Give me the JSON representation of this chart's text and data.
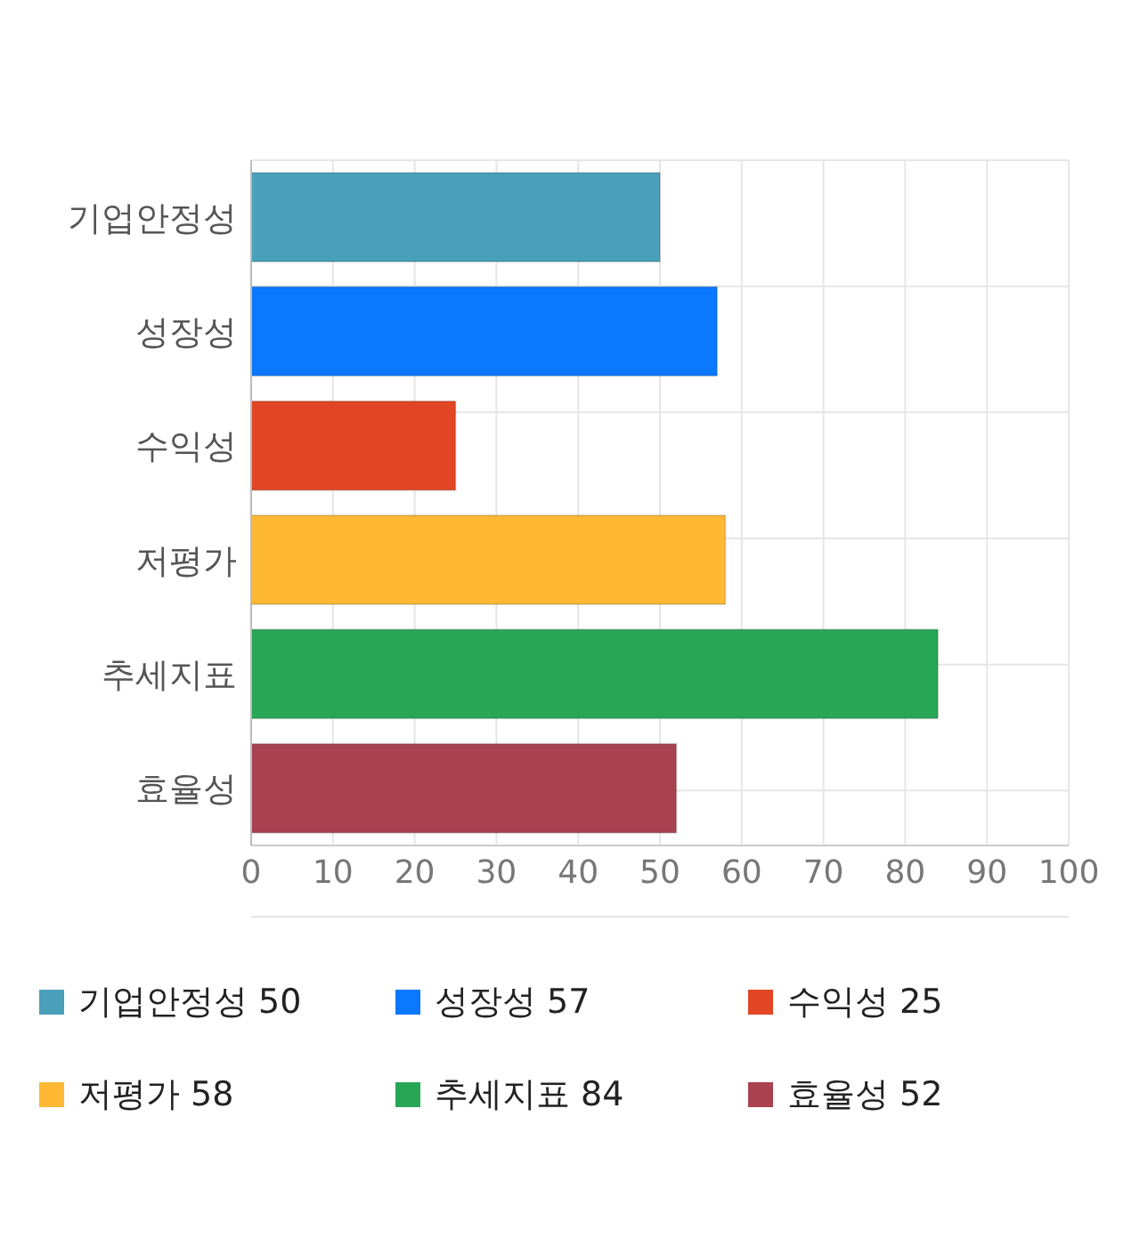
{
  "chart_data": {
    "type": "bar",
    "orientation": "horizontal",
    "stacked": true,
    "categories": [
      "기업안정성",
      "성장성",
      "수익성",
      "저평가",
      "추세지표",
      "효율성"
    ],
    "series": [
      {
        "name": "기업안정성 50",
        "color": "#4aa0bb",
        "values": [
          50,
          null,
          null,
          null,
          null,
          null
        ]
      },
      {
        "name": "성장성 57",
        "color": "#0a78ff",
        "values": [
          null,
          57,
          null,
          null,
          null,
          null
        ]
      },
      {
        "name": "수익성 25",
        "color": "#e24624",
        "values": [
          null,
          null,
          25,
          null,
          null,
          null
        ]
      },
      {
        "name": "저평가 58",
        "color": "#ffb834",
        "values": [
          null,
          null,
          null,
          58,
          null,
          null
        ]
      },
      {
        "name": "추세지표 84",
        "color": "#27a656",
        "values": [
          null,
          null,
          null,
          null,
          84,
          null
        ]
      },
      {
        "name": "효율성 52",
        "color": "#a8424f",
        "values": [
          null,
          null,
          null,
          null,
          null,
          52
        ]
      }
    ],
    "xlim": [
      0,
      100
    ],
    "xticks": [
      0,
      10,
      20,
      30,
      40,
      50,
      60,
      70,
      80,
      90,
      100
    ],
    "grid": true,
    "legend": "bottom"
  }
}
